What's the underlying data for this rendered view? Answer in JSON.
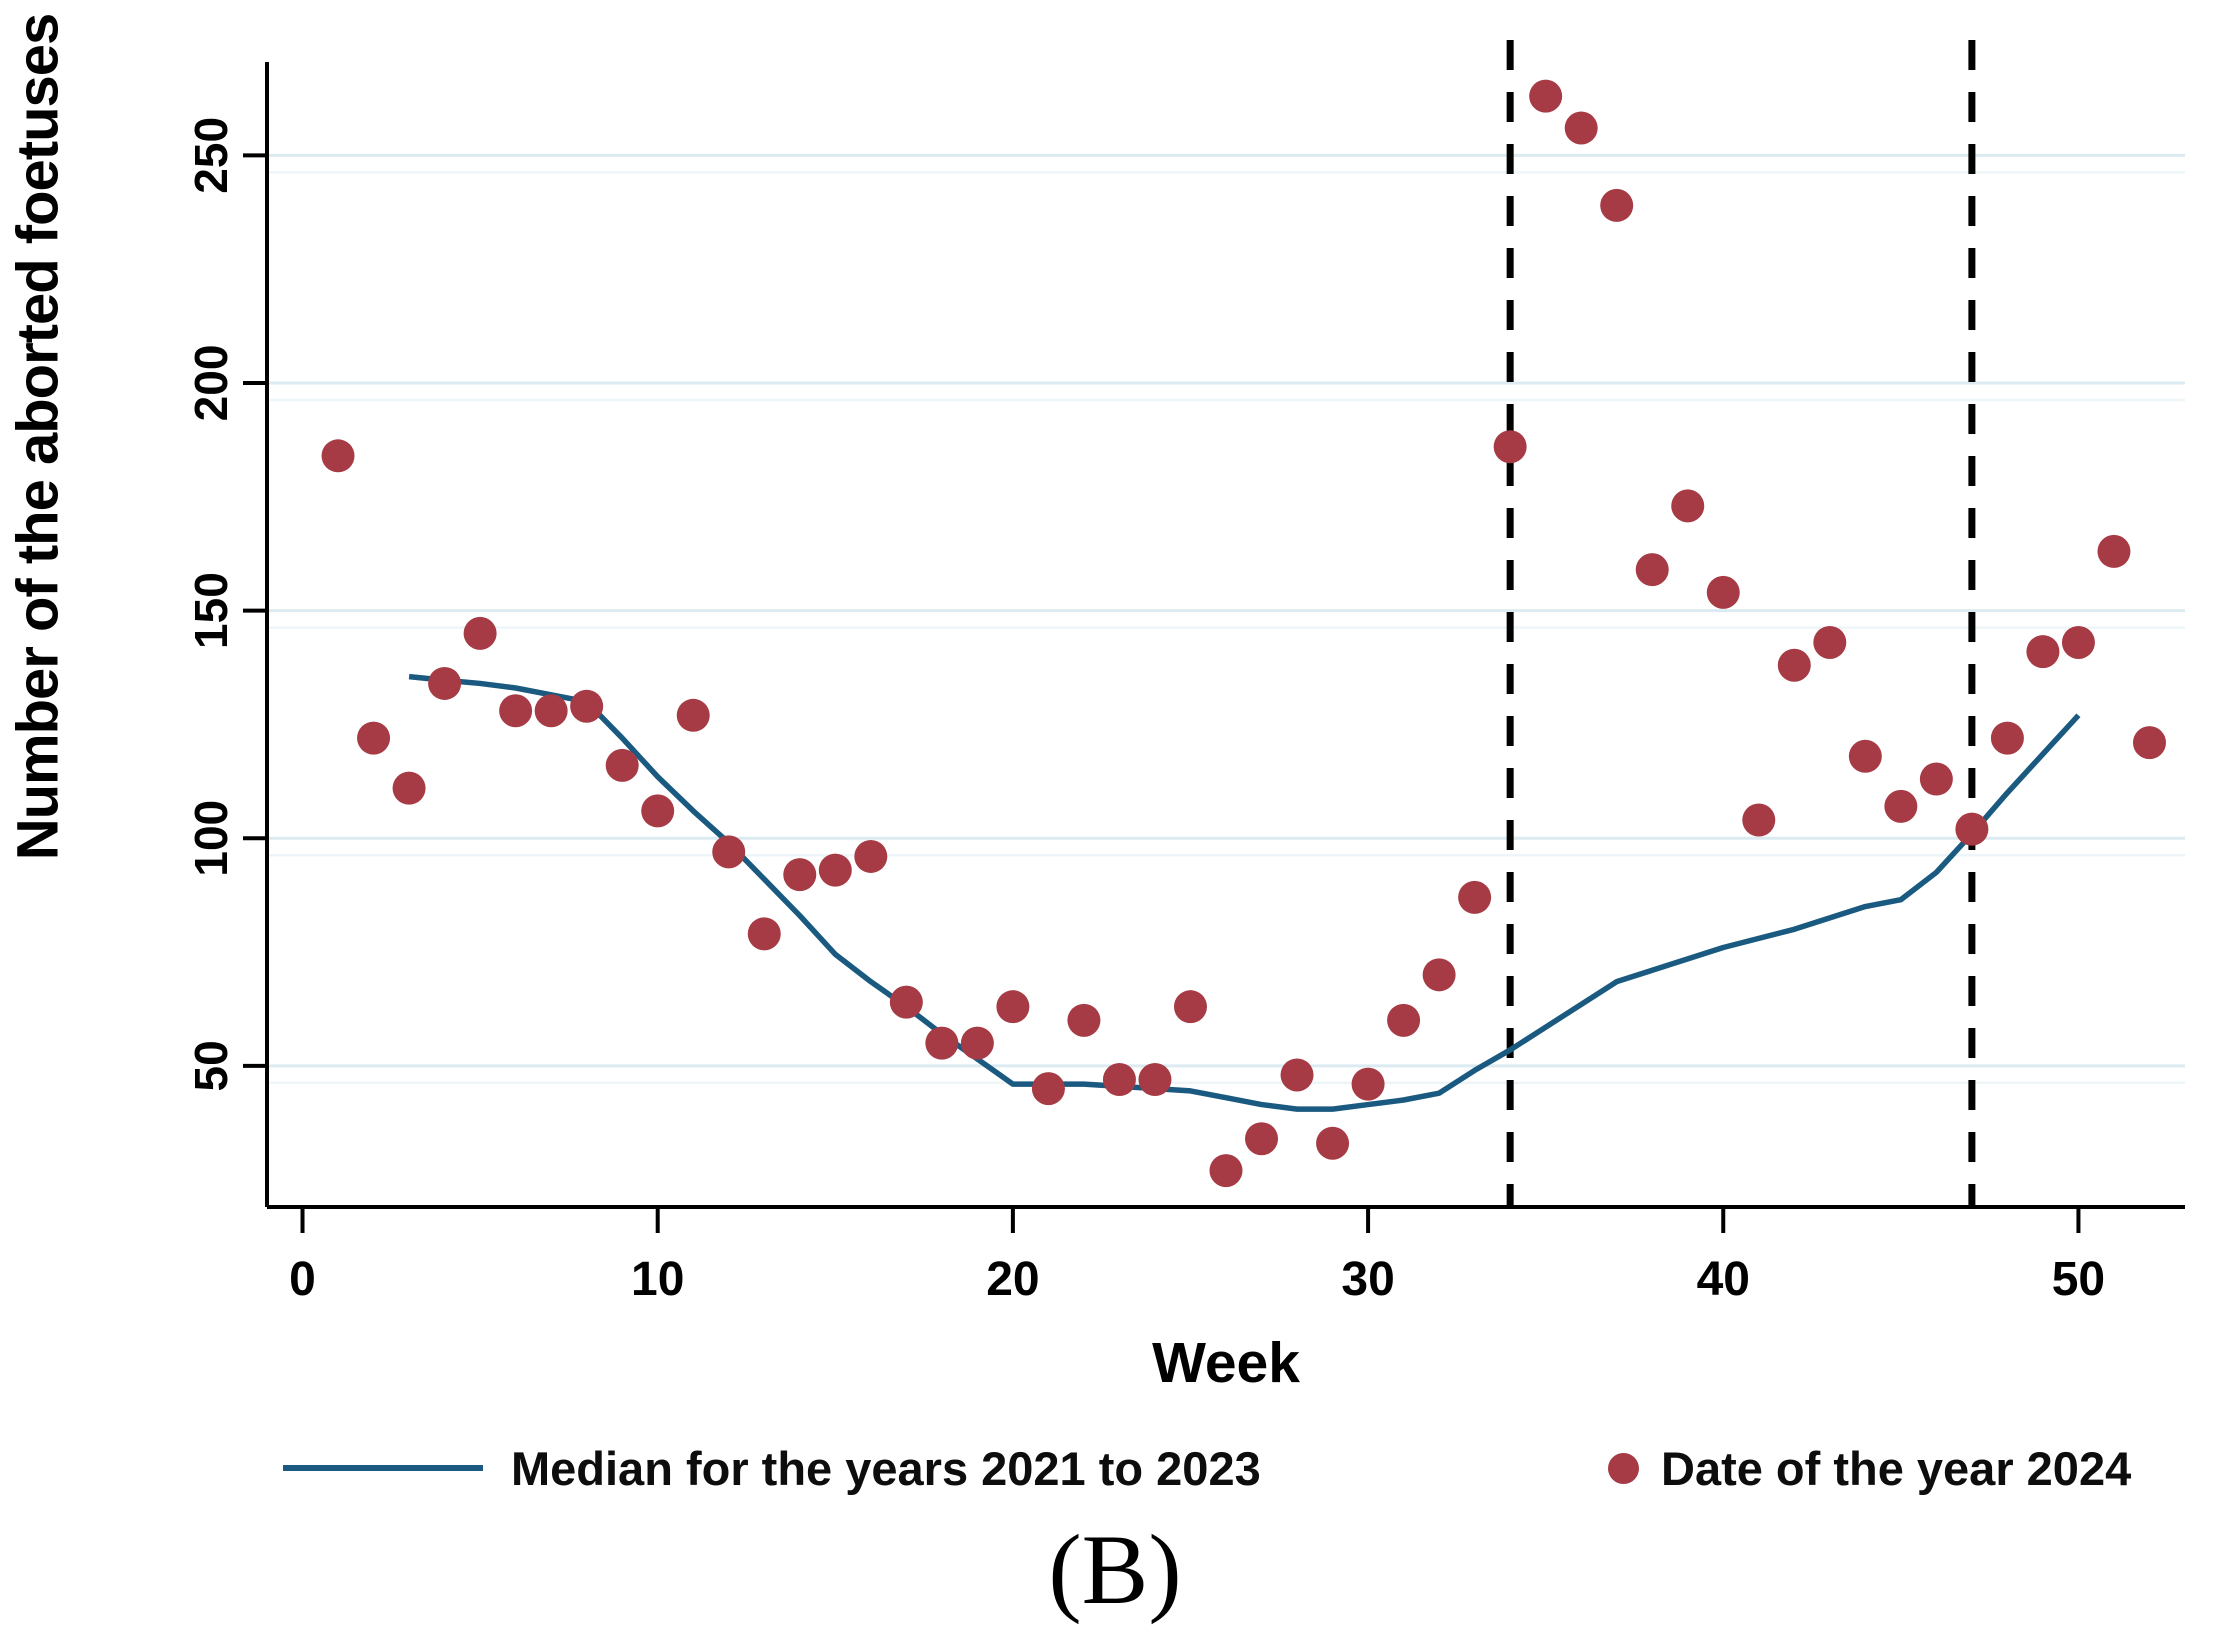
{
  "figure": {
    "caption": "(B)",
    "background": "#ffffff"
  },
  "chart_data": {
    "type": "scatter+line",
    "title": "(B)",
    "xlabel": "Week",
    "ylabel": "Number of the aborted foetuses",
    "xlim": [
      -1,
      53
    ],
    "ylim": [
      19,
      270.5
    ],
    "xticks": [
      0,
      10,
      20,
      30,
      40,
      50
    ],
    "yticks": [
      50,
      100,
      150,
      200,
      250
    ],
    "grid": "horizontal",
    "legend_position": "bottom",
    "vlines_dashed": [
      34,
      47
    ],
    "colors": {
      "median_line": "#1a5a80",
      "dots": "#a63b45",
      "grid": "#dcebf1",
      "grid_faint": "#eef5f8",
      "axis": "#000000",
      "dashed_line": "#000000"
    },
    "series": [
      {
        "name": "Median for the years 2021 to 2023",
        "type": "line",
        "points": [
          [
            3,
            135.5
          ],
          [
            4,
            134.7
          ],
          [
            5,
            134
          ],
          [
            6,
            133
          ],
          [
            7,
            131.5
          ],
          [
            8,
            130
          ],
          [
            9,
            122
          ],
          [
            10,
            113.5
          ],
          [
            11,
            106
          ],
          [
            12,
            99
          ],
          [
            13,
            91
          ],
          [
            14,
            83
          ],
          [
            15,
            74.5
          ],
          [
            16,
            68.5
          ],
          [
            17,
            63
          ],
          [
            18,
            57
          ],
          [
            19,
            51.5
          ],
          [
            20,
            46
          ],
          [
            21,
            46
          ],
          [
            22,
            46
          ],
          [
            23,
            45.5
          ],
          [
            24,
            45
          ],
          [
            25,
            44.5
          ],
          [
            26,
            43
          ],
          [
            27,
            41.5
          ],
          [
            28,
            40.5
          ],
          [
            29,
            40.5
          ],
          [
            30,
            41.5
          ],
          [
            31,
            42.5
          ],
          [
            32,
            44
          ],
          [
            33,
            49
          ],
          [
            34,
            53.5
          ],
          [
            35,
            58.5
          ],
          [
            36,
            63.5
          ],
          [
            37,
            68.5
          ],
          [
            38,
            71
          ],
          [
            39,
            73.5
          ],
          [
            40,
            76
          ],
          [
            41,
            78
          ],
          [
            42,
            80
          ],
          [
            43,
            82.5
          ],
          [
            44,
            85
          ],
          [
            45,
            86.5
          ],
          [
            46,
            92.5
          ],
          [
            47,
            101
          ],
          [
            48,
            110
          ],
          [
            49,
            118.5
          ],
          [
            50,
            127
          ]
        ]
      },
      {
        "name": "Date of the year 2024",
        "type": "scatter",
        "points": [
          [
            1,
            184
          ],
          [
            2,
            122
          ],
          [
            3,
            111
          ],
          [
            4,
            134
          ],
          [
            5,
            145
          ],
          [
            6,
            128
          ],
          [
            7,
            128
          ],
          [
            8,
            129
          ],
          [
            9,
            116
          ],
          [
            10,
            106
          ],
          [
            11,
            127
          ],
          [
            12,
            97
          ],
          [
            13,
            79
          ],
          [
            14,
            92
          ],
          [
            15,
            93
          ],
          [
            16,
            96
          ],
          [
            17,
            64
          ],
          [
            18,
            55
          ],
          [
            19,
            55
          ],
          [
            20,
            63
          ],
          [
            21,
            45
          ],
          [
            22,
            60
          ],
          [
            23,
            47
          ],
          [
            24,
            47
          ],
          [
            25,
            63
          ],
          [
            26,
            27
          ],
          [
            27,
            34
          ],
          [
            28,
            48
          ],
          [
            29,
            33
          ],
          [
            30,
            46
          ],
          [
            31,
            60
          ],
          [
            32,
            70
          ],
          [
            33,
            87
          ],
          [
            34,
            186
          ],
          [
            35,
            263
          ],
          [
            36,
            256
          ],
          [
            37,
            239
          ],
          [
            38,
            159
          ],
          [
            39,
            173
          ],
          [
            40,
            154
          ],
          [
            41,
            104
          ],
          [
            42,
            138
          ],
          [
            43,
            143
          ],
          [
            44,
            118
          ],
          [
            45,
            107
          ],
          [
            46,
            113
          ],
          [
            47,
            102
          ],
          [
            48,
            122
          ],
          [
            49,
            141
          ],
          [
            50,
            143
          ],
          [
            51,
            163
          ],
          [
            52,
            121
          ]
        ]
      }
    ]
  }
}
